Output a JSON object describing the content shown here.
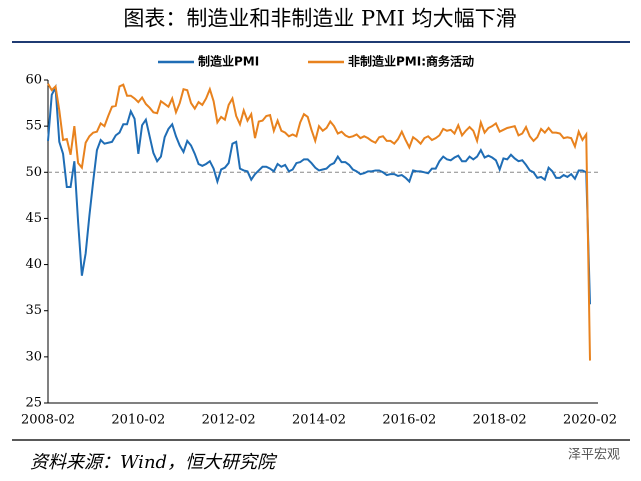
{
  "chart_data": {
    "type": "line",
    "title": "图表：制造业和非制造业 PMI 均大幅下滑",
    "source": "资料来源：Wind，恒大研究院",
    "watermark": "泽平宏观",
    "x": [
      "2008-02",
      "2008-03",
      "2008-04",
      "2008-05",
      "2008-06",
      "2008-07",
      "2008-08",
      "2008-09",
      "2008-10",
      "2008-11",
      "2008-12",
      "2009-01",
      "2009-02",
      "2009-03",
      "2009-04",
      "2009-05",
      "2009-06",
      "2009-07",
      "2009-08",
      "2009-09",
      "2009-10",
      "2009-11",
      "2009-12",
      "2010-01",
      "2010-02",
      "2010-03",
      "2010-04",
      "2010-05",
      "2010-06",
      "2010-07",
      "2010-08",
      "2010-09",
      "2010-10",
      "2010-11",
      "2010-12",
      "2011-01",
      "2011-02",
      "2011-03",
      "2011-04",
      "2011-05",
      "2011-06",
      "2011-07",
      "2011-08",
      "2011-09",
      "2011-10",
      "2011-11",
      "2011-12",
      "2012-01",
      "2012-02",
      "2012-03",
      "2012-04",
      "2012-05",
      "2012-06",
      "2012-07",
      "2012-08",
      "2012-09",
      "2012-10",
      "2012-11",
      "2012-12",
      "2013-01",
      "2013-02",
      "2013-03",
      "2013-04",
      "2013-05",
      "2013-06",
      "2013-07",
      "2013-08",
      "2013-09",
      "2013-10",
      "2013-11",
      "2013-12",
      "2014-01",
      "2014-02",
      "2014-03",
      "2014-04",
      "2014-05",
      "2014-06",
      "2014-07",
      "2014-08",
      "2014-09",
      "2014-10",
      "2014-11",
      "2014-12",
      "2015-01",
      "2015-02",
      "2015-03",
      "2015-04",
      "2015-05",
      "2015-06",
      "2015-07",
      "2015-08",
      "2015-09",
      "2015-10",
      "2015-11",
      "2015-12",
      "2016-01",
      "2016-02",
      "2016-03",
      "2016-04",
      "2016-05",
      "2016-06",
      "2016-07",
      "2016-08",
      "2016-09",
      "2016-10",
      "2016-11",
      "2016-12",
      "2017-01",
      "2017-02",
      "2017-03",
      "2017-04",
      "2017-05",
      "2017-06",
      "2017-07",
      "2017-08",
      "2017-09",
      "2017-10",
      "2017-11",
      "2017-12",
      "2018-01",
      "2018-02",
      "2018-03",
      "2018-04",
      "2018-05",
      "2018-06",
      "2018-07",
      "2018-08",
      "2018-09",
      "2018-10",
      "2018-11",
      "2018-12",
      "2019-01",
      "2019-02",
      "2019-03",
      "2019-04",
      "2019-05",
      "2019-06",
      "2019-07",
      "2019-08",
      "2019-09",
      "2019-10",
      "2019-11",
      "2019-12",
      "2020-01",
      "2020-02"
    ],
    "series": [
      {
        "name": "制造业PMI",
        "color": "#1f6db5",
        "values": [
          53.4,
          58.4,
          59.2,
          53.3,
          52.0,
          48.4,
          48.4,
          51.2,
          44.6,
          38.8,
          41.2,
          45.3,
          49.0,
          52.4,
          53.5,
          53.1,
          53.2,
          53.3,
          54.0,
          54.3,
          55.2,
          55.2,
          56.6,
          55.8,
          52.0,
          55.1,
          55.7,
          53.9,
          52.1,
          51.2,
          51.7,
          53.8,
          54.7,
          55.2,
          53.9,
          52.9,
          52.2,
          53.4,
          52.9,
          52.0,
          50.9,
          50.7,
          50.9,
          51.2,
          50.4,
          49.0,
          50.3,
          50.5,
          51.0,
          53.1,
          53.3,
          50.4,
          50.2,
          50.1,
          49.2,
          49.8,
          50.2,
          50.6,
          50.6,
          50.4,
          50.1,
          50.9,
          50.6,
          50.8,
          50.1,
          50.3,
          51.0,
          51.1,
          51.4,
          51.4,
          51.0,
          50.5,
          50.2,
          50.3,
          50.4,
          50.8,
          51.0,
          51.7,
          51.1,
          51.1,
          50.8,
          50.3,
          50.1,
          49.8,
          49.9,
          50.1,
          50.1,
          50.2,
          50.2,
          50.0,
          49.7,
          49.8,
          49.8,
          49.6,
          49.7,
          49.4,
          49.0,
          50.2,
          50.1,
          50.1,
          50.0,
          49.9,
          50.4,
          50.4,
          51.2,
          51.7,
          51.4,
          51.3,
          51.6,
          51.8,
          51.2,
          51.2,
          51.7,
          51.4,
          51.7,
          52.4,
          51.6,
          51.8,
          51.6,
          51.3,
          50.3,
          51.5,
          51.4,
          51.9,
          51.5,
          51.2,
          51.3,
          50.8,
          50.2,
          50.0,
          49.4,
          49.5,
          49.2,
          50.5,
          50.1,
          49.4,
          49.4,
          49.7,
          49.5,
          49.8,
          49.3,
          50.2,
          50.2,
          50.0,
          35.7
        ]
      },
      {
        "name": "非制造业PMI:商务活动",
        "color": "#e8821e",
        "values": [
          59.6,
          58.9,
          59.3,
          56.7,
          53.5,
          53.6,
          51.9,
          55.0,
          51.0,
          50.5,
          53.2,
          53.9,
          54.3,
          54.4,
          55.3,
          55.0,
          56.1,
          57.1,
          57.2,
          59.3,
          59.5,
          58.3,
          58.3,
          58.0,
          57.6,
          58.1,
          57.4,
          57.0,
          56.5,
          56.4,
          57.7,
          57.4,
          57.1,
          58.0,
          56.5,
          57.5,
          59.0,
          58.9,
          57.5,
          56.9,
          57.6,
          57.3,
          58.0,
          59.0,
          57.7,
          55.4,
          56.0,
          55.7,
          57.3,
          58.0,
          56.1,
          55.2,
          56.7,
          55.6,
          56.3,
          53.7,
          55.5,
          55.6,
          56.1,
          56.2,
          54.5,
          55.6,
          54.5,
          54.3,
          53.9,
          54.1,
          53.9,
          55.4,
          56.3,
          56.0,
          54.6,
          53.4,
          55.0,
          54.5,
          54.8,
          55.5,
          55.0,
          54.2,
          54.4,
          54.0,
          53.8,
          53.9,
          54.1,
          53.7,
          53.9,
          53.7,
          53.4,
          53.2,
          53.8,
          53.9,
          53.4,
          53.4,
          53.1,
          53.6,
          54.4,
          53.5,
          52.7,
          53.8,
          53.5,
          53.1,
          53.7,
          53.9,
          53.5,
          53.7,
          54.0,
          54.7,
          54.5,
          54.6,
          54.2,
          55.1,
          54.0,
          54.5,
          54.9,
          54.5,
          53.4,
          55.4,
          54.3,
          54.8,
          55.0,
          55.3,
          54.4,
          54.6,
          54.8,
          54.9,
          55.0,
          54.0,
          54.2,
          54.9,
          53.9,
          53.4,
          53.8,
          54.7,
          54.3,
          54.8,
          54.3,
          54.3,
          54.2,
          53.7,
          53.8,
          53.7,
          52.8,
          54.4,
          53.5,
          54.1,
          29.6
        ]
      }
    ],
    "ylim": [
      25,
      60
    ],
    "yticks": [
      25,
      30,
      35,
      40,
      45,
      50,
      55,
      60
    ],
    "reference_line": 50
  }
}
